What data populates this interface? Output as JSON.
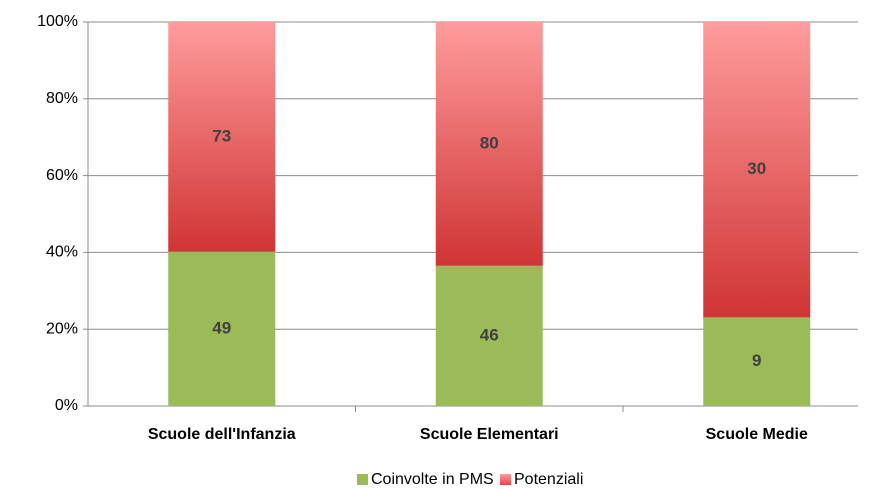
{
  "chart_data": {
    "type": "bar",
    "stacked": "percent",
    "categories": [
      "Scuole dell'Infanzia",
      "Scuole Elementari",
      "Scuole Medie"
    ],
    "series": [
      {
        "name": "Coinvolte in PMS",
        "color": "#9bbb59",
        "values": [
          49,
          46,
          9
        ]
      },
      {
        "name": "Potenziali",
        "color": "#e05555",
        "values": [
          73,
          80,
          30
        ]
      }
    ],
    "ylim": [
      0,
      100
    ],
    "yticks": [
      {
        "value": 0,
        "label": "0%"
      },
      {
        "value": 20,
        "label": "20%"
      },
      {
        "value": 40,
        "label": "40%"
      },
      {
        "value": 60,
        "label": "60%"
      },
      {
        "value": 80,
        "label": "80%"
      },
      {
        "value": 100,
        "label": "100%"
      }
    ],
    "grid": true,
    "legend": "bottom"
  }
}
